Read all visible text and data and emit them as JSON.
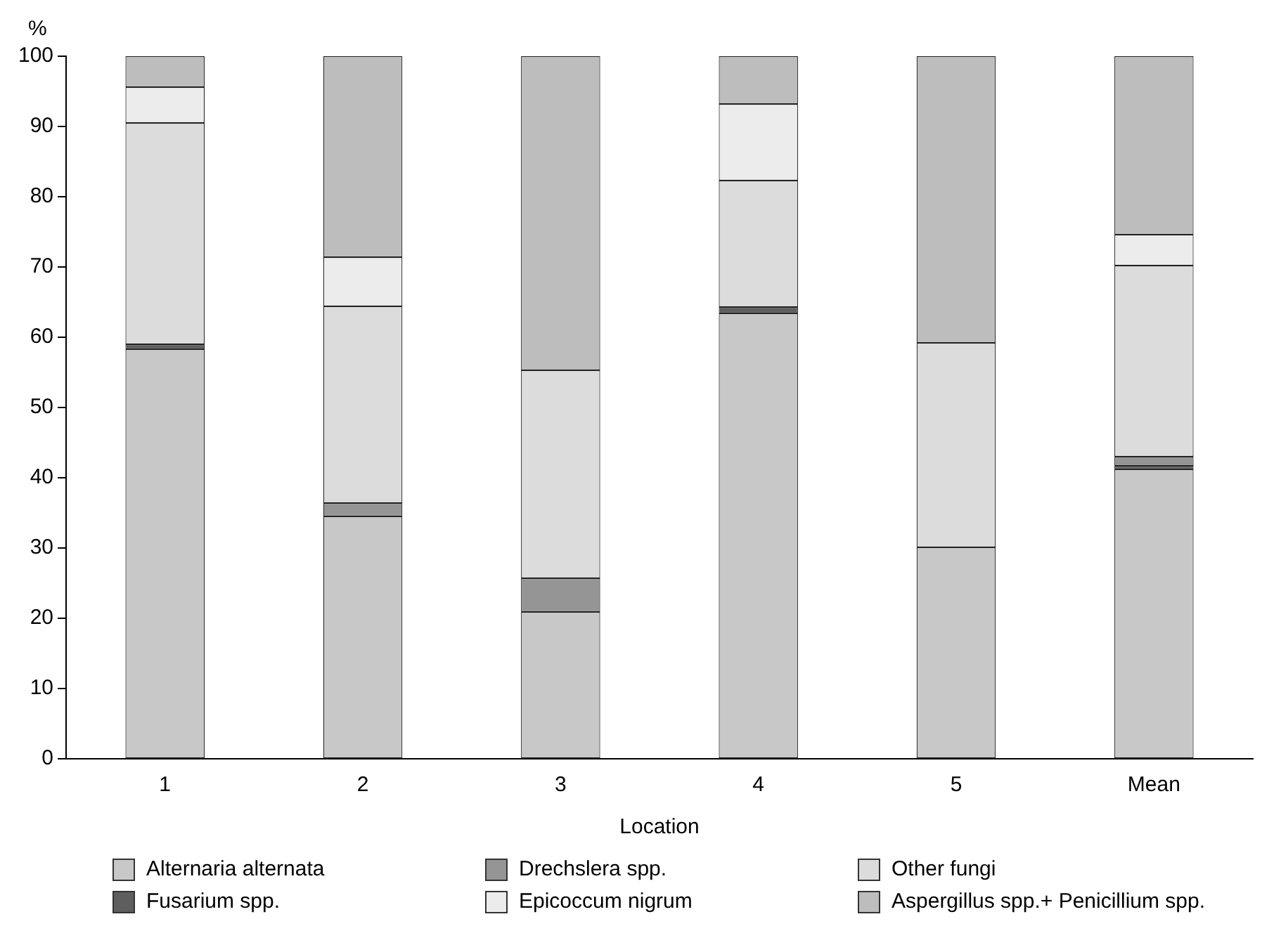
{
  "chart_data": {
    "type": "bar",
    "stacked": true,
    "xlabel": "Location",
    "ylabel": "%",
    "categories": [
      "1",
      "2",
      "3",
      "4",
      "5",
      "Mean"
    ],
    "series": [
      {
        "name": "Alternaria alternata",
        "color": "#c8c8c8",
        "values": [
          58.3,
          34.5,
          20.9,
          63.4,
          30.1,
          41.2
        ]
      },
      {
        "name": "Fusarium spp.",
        "color": "#5e5e5e",
        "values": [
          0.7,
          0,
          0,
          0.9,
          0,
          0.5
        ]
      },
      {
        "name": "Drechslera spp.",
        "color": "#959595",
        "values": [
          0,
          1.9,
          4.8,
          0,
          0,
          1.3
        ]
      },
      {
        "name": "Other fungi",
        "color": "#dcdcdc",
        "values": [
          31.5,
          28,
          29.6,
          18,
          29.1,
          27.2
        ]
      },
      {
        "name": "Epicoccum nigrum",
        "color": "#ececec",
        "values": [
          5.1,
          7,
          0,
          10.9,
          0,
          4.4
        ]
      },
      {
        "name": "Aspergillus spp.+ Penicillium spp.",
        "color": "#bdbdbd",
        "values": [
          4.4,
          28.6,
          44.7,
          6.8,
          40.8,
          25.4
        ]
      }
    ],
    "ylim": [
      0,
      100
    ],
    "yticks": [
      0,
      10,
      20,
      30,
      40,
      50,
      60,
      70,
      80,
      90,
      100
    ],
    "grid": false,
    "legend": "bottom"
  }
}
